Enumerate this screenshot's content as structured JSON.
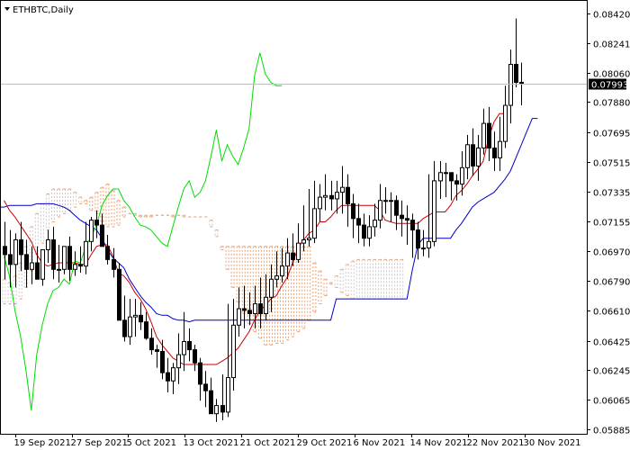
{
  "chart_data": {
    "type": "candlestick",
    "title": "ETHBTC,Daily",
    "current_price": "0.07993",
    "ylim": [
      0.05885,
      0.0842
    ],
    "y_ticks": [
      "0.08420",
      "0.08241",
      "0.08060",
      "0.07880",
      "0.07695",
      "0.07515",
      "0.07335",
      "0.07155",
      "0.06970",
      "0.06790",
      "0.06610",
      "0.06425",
      "0.06245",
      "0.06065",
      "0.05885"
    ],
    "x_ticks": [
      "19 Sep 2021",
      "27 Sep 2021",
      "5 Oct 2021",
      "13 Oct 2021",
      "21 Oct 2021",
      "29 Oct 2021",
      "6 Nov 2021",
      "14 Nov 2021",
      "22 Nov 2021",
      "30 Nov 2021"
    ],
    "grid": false,
    "colors": {
      "bull_candle": "#ffffff",
      "bear_candle": "#000000",
      "kijun": "#0000c8",
      "tenkan": "#cc0000",
      "chikou": "#00dd00",
      "cloud_hatch": "#e8a070",
      "cloud_hatch_alt": "#cfc8c8",
      "price_line": "#c0c0c0",
      "price_label_bg": "#000000"
    },
    "series": [
      {
        "name": "open",
        "values": [
          0.07,
          0.0695,
          0.0689,
          0.0704,
          0.0695,
          0.0686,
          0.069,
          0.068,
          0.0698,
          0.0704,
          0.0686,
          0.0686,
          0.07,
          0.0686,
          0.0689,
          0.0688,
          0.0703,
          0.0716,
          0.0713,
          0.07,
          0.0692,
          0.0686,
          0.0655,
          0.0645,
          0.0657,
          0.0658,
          0.0654,
          0.0644,
          0.0637,
          0.0636,
          0.0623,
          0.0618,
          0.0626,
          0.0634,
          0.0642,
          0.0637,
          0.0629,
          0.0616,
          0.0612,
          0.0598,
          0.0603,
          0.0599,
          0.062,
          0.0652,
          0.0662,
          0.0661,
          0.0659,
          0.0665,
          0.0659,
          0.0669,
          0.068,
          0.0682,
          0.0688,
          0.0696,
          0.0692,
          0.0702,
          0.0704,
          0.0705,
          0.0723,
          0.073,
          0.0731,
          0.0729,
          0.0733,
          0.0736,
          0.0726,
          0.0717,
          0.0713,
          0.0705,
          0.0712,
          0.0716,
          0.0728,
          0.0728,
          0.0728,
          0.0719,
          0.0717,
          0.0716,
          0.071,
          0.0699,
          0.0699,
          0.0703,
          0.074,
          0.0745,
          0.0745,
          0.074,
          0.0738,
          0.0748,
          0.0762,
          0.0749,
          0.076,
          0.0775,
          0.076,
          0.0754,
          0.0764,
          0.0786,
          0.0811,
          0.08
        ]
      },
      {
        "name": "high",
        "values": [
          0.0715,
          0.071,
          0.0708,
          0.0715,
          0.0704,
          0.07,
          0.07,
          0.0695,
          0.071,
          0.0712,
          0.0701,
          0.07,
          0.0706,
          0.0697,
          0.07,
          0.0715,
          0.0718,
          0.0722,
          0.072,
          0.0707,
          0.0699,
          0.069,
          0.067,
          0.0668,
          0.0668,
          0.0666,
          0.066,
          0.065,
          0.064,
          0.0643,
          0.0632,
          0.0629,
          0.0647,
          0.066,
          0.065,
          0.064,
          0.0632,
          0.0624,
          0.062,
          0.0607,
          0.0622,
          0.0665,
          0.0668,
          0.0675,
          0.0676,
          0.0672,
          0.0676,
          0.0681,
          0.0683,
          0.0689,
          0.0697,
          0.0699,
          0.0705,
          0.0708,
          0.0714,
          0.0725,
          0.0735,
          0.074,
          0.0738,
          0.0744,
          0.074,
          0.074,
          0.0749,
          0.0744,
          0.0732,
          0.0726,
          0.072,
          0.0719,
          0.0726,
          0.0738,
          0.0736,
          0.0733,
          0.0731,
          0.0728,
          0.0725,
          0.072,
          0.0715,
          0.071,
          0.0744,
          0.0752,
          0.0752,
          0.0751,
          0.0745,
          0.0744,
          0.0758,
          0.0768,
          0.0772,
          0.0768,
          0.0784,
          0.0785,
          0.077,
          0.0779,
          0.0798,
          0.082,
          0.0839,
          0.0812
        ]
      },
      {
        "name": "low",
        "values": [
          0.068,
          0.0675,
          0.0675,
          0.0685,
          0.0675,
          0.0677,
          0.068,
          0.0676,
          0.069,
          0.068,
          0.0678,
          0.0683,
          0.0679,
          0.0682,
          0.0684,
          0.0683,
          0.0697,
          0.0705,
          0.07,
          0.0689,
          0.0681,
          0.066,
          0.0642,
          0.064,
          0.0645,
          0.0649,
          0.0643,
          0.0634,
          0.0626,
          0.0619,
          0.0611,
          0.061,
          0.0616,
          0.0624,
          0.063,
          0.0624,
          0.0606,
          0.0602,
          0.0598,
          0.0593,
          0.0594,
          0.0596,
          0.0612,
          0.0645,
          0.065,
          0.0652,
          0.065,
          0.065,
          0.0655,
          0.066,
          0.0675,
          0.0678,
          0.068,
          0.0688,
          0.069,
          0.0697,
          0.07,
          0.0702,
          0.0715,
          0.0722,
          0.0722,
          0.072,
          0.072,
          0.0712,
          0.0705,
          0.0702,
          0.07,
          0.07,
          0.0706,
          0.0711,
          0.072,
          0.0715,
          0.071,
          0.0706,
          0.0701,
          0.0693,
          0.0692,
          0.0694,
          0.0693,
          0.07,
          0.0729,
          0.073,
          0.0728,
          0.0728,
          0.0731,
          0.0741,
          0.0743,
          0.074,
          0.0756,
          0.0752,
          0.0746,
          0.0746,
          0.076,
          0.0775,
          0.0797,
          0.0786
        ]
      },
      {
        "name": "close",
        "values": [
          0.0695,
          0.0689,
          0.0704,
          0.0695,
          0.0686,
          0.069,
          0.068,
          0.0698,
          0.0704,
          0.0686,
          0.0686,
          0.07,
          0.0686,
          0.0689,
          0.0688,
          0.0703,
          0.0716,
          0.0713,
          0.07,
          0.0692,
          0.0686,
          0.0655,
          0.0645,
          0.0657,
          0.0658,
          0.0654,
          0.0644,
          0.0637,
          0.0636,
          0.0623,
          0.0618,
          0.0626,
          0.0634,
          0.0642,
          0.0637,
          0.0629,
          0.0616,
          0.0612,
          0.0598,
          0.0603,
          0.0599,
          0.062,
          0.0652,
          0.0662,
          0.0661,
          0.0659,
          0.0665,
          0.0659,
          0.0669,
          0.068,
          0.0682,
          0.0688,
          0.0696,
          0.0692,
          0.0702,
          0.0704,
          0.0705,
          0.0723,
          0.073,
          0.0731,
          0.0729,
          0.0733,
          0.0736,
          0.0726,
          0.0717,
          0.0713,
          0.0705,
          0.0712,
          0.0716,
          0.0728,
          0.0728,
          0.0728,
          0.0719,
          0.0717,
          0.0716,
          0.071,
          0.0699,
          0.0699,
          0.0703,
          0.074,
          0.0745,
          0.0745,
          0.074,
          0.0738,
          0.0748,
          0.0762,
          0.0749,
          0.076,
          0.0775,
          0.076,
          0.0754,
          0.0764,
          0.0786,
          0.0811,
          0.08,
          0.0799
        ]
      }
    ],
    "indicators": {
      "kijun_sen": [
        0.0724,
        0.0724,
        0.0725,
        0.0725,
        0.0725,
        0.0725,
        0.0725,
        0.0726,
        0.0726,
        0.0726,
        0.0726,
        0.0725,
        0.0724,
        0.0722,
        0.0719,
        0.0716,
        0.0714,
        0.0712,
        0.071,
        0.0705,
        0.0698,
        0.0693,
        0.069,
        0.0687,
        0.068,
        0.0675,
        0.067,
        0.0666,
        0.0663,
        0.0659,
        0.0658,
        0.0658,
        0.0656,
        0.0655,
        0.0655,
        0.0654,
        0.0655,
        0.0655,
        0.0655,
        0.0655,
        0.0655,
        0.0655,
        0.0655,
        0.0655,
        0.0655,
        0.0655,
        0.0655,
        0.0655,
        0.0655,
        0.0655,
        0.0655,
        0.0655,
        0.0655,
        0.0655,
        0.0655,
        0.0655,
        0.0655,
        0.0655,
        0.0655,
        0.0655,
        0.0655,
        0.0655,
        0.0668,
        0.0668,
        0.0668,
        0.0668,
        0.0668,
        0.0668,
        0.0668,
        0.0668,
        0.0668,
        0.0668,
        0.0668,
        0.0668,
        0.0668,
        0.0668,
        0.0686,
        0.0701,
        0.0705,
        0.0705,
        0.0705,
        0.0705,
        0.0705,
        0.0705,
        0.071,
        0.0714,
        0.0719,
        0.0724,
        0.0727,
        0.0729,
        0.0731,
        0.0733,
        0.0737,
        0.0741,
        0.0746,
        0.0754,
        0.0762,
        0.077,
        0.0778,
        0.0778
      ],
      "tenkan_sen": [
        0.0728,
        0.0722,
        0.0718,
        0.0713,
        0.0708,
        0.0703,
        0.0695,
        0.069,
        0.0688,
        0.0689,
        0.069,
        0.069,
        0.069,
        0.069,
        0.0689,
        0.0689,
        0.0695,
        0.07,
        0.0701,
        0.0701,
        0.0694,
        0.0684,
        0.0682,
        0.0678,
        0.0672,
        0.0668,
        0.0662,
        0.0654,
        0.0645,
        0.064,
        0.0636,
        0.0632,
        0.063,
        0.0628,
        0.0628,
        0.0628,
        0.0628,
        0.0628,
        0.0628,
        0.0628,
        0.063,
        0.0632,
        0.0635,
        0.0638,
        0.0643,
        0.0648,
        0.0655,
        0.0661,
        0.0664,
        0.0668,
        0.067,
        0.0676,
        0.0681,
        0.069,
        0.0699,
        0.0704,
        0.0708,
        0.071,
        0.0715,
        0.0715,
        0.0718,
        0.0722,
        0.0725,
        0.0725,
        0.0725,
        0.0725,
        0.0725,
        0.0725,
        0.0725,
        0.0722,
        0.0716,
        0.0715,
        0.0714,
        0.0714,
        0.0714,
        0.0714,
        0.0714,
        0.0717,
        0.0719,
        0.0721,
        0.0721,
        0.0721,
        0.0725,
        0.0731,
        0.0734,
        0.0738,
        0.0743,
        0.0747,
        0.0752,
        0.0766,
        0.0776,
        0.0781,
        0.0781
      ],
      "chikou_span": [
        0.0694,
        0.0682,
        0.0661,
        0.0646,
        0.0625,
        0.06,
        0.0634,
        0.0652,
        0.0665,
        0.0673,
        0.0675,
        0.068,
        0.0677,
        0.0691,
        0.069,
        0.07,
        0.0706,
        0.0713,
        0.0725,
        0.0731,
        0.0735,
        0.0735,
        0.0728,
        0.0724,
        0.0718,
        0.0713,
        0.0712,
        0.071,
        0.0706,
        0.0702,
        0.07,
        0.0712,
        0.0724,
        0.0735,
        0.074,
        0.073,
        0.0733,
        0.074,
        0.0755,
        0.0771,
        0.0752,
        0.0762,
        0.0755,
        0.075,
        0.076,
        0.0772,
        0.0804,
        0.0818,
        0.0805,
        0.08,
        0.0798,
        0.0798
      ],
      "senkou_a": [
        0.068,
        0.0678,
        0.0682,
        0.069,
        0.07,
        0.0712,
        0.072,
        0.0726,
        0.0732,
        0.0735,
        0.0735,
        0.0735,
        0.0735,
        0.0733,
        0.073,
        0.0726,
        0.0722,
        0.072,
        0.0715,
        0.0712,
        0.0712,
        0.0713,
        0.0718,
        0.072,
        0.072,
        0.0718,
        0.0718,
        0.0718,
        0.0719,
        0.0719,
        0.0719,
        0.0718,
        0.0719,
        0.0719,
        0.0718,
        0.0718,
        0.0718,
        0.0718,
        0.0716,
        0.071,
        0.0698,
        0.0686,
        0.0675,
        0.0666,
        0.0659,
        0.0653,
        0.0648,
        0.0644,
        0.064,
        0.064,
        0.0641,
        0.0641,
        0.0643,
        0.0645,
        0.0648,
        0.065,
        0.0655,
        0.066,
        0.0665,
        0.067,
        0.0678,
        0.0682,
        0.0686,
        0.0689,
        0.0691,
        0.0692,
        0.0692,
        0.0692,
        0.0692,
        0.0692,
        0.0692,
        0.0692,
        0.0692,
        0.0692
      ],
      "senkou_b": [
        0.0665,
        0.0665,
        0.0665,
        0.0668,
        0.0675,
        0.0685,
        0.0695,
        0.0702,
        0.071,
        0.0715,
        0.0718,
        0.072,
        0.0722,
        0.0724,
        0.0726,
        0.0728,
        0.073,
        0.0733,
        0.0736,
        0.0738,
        0.0734,
        0.0728,
        0.0724,
        0.072,
        0.0719,
        0.0719,
        0.0719,
        0.0719,
        0.0719,
        0.0719,
        0.0719,
        0.0719,
        0.0719,
        0.0718,
        0.0718,
        0.0718,
        0.0718,
        0.0718,
        0.0712,
        0.0706,
        0.07,
        0.07,
        0.07,
        0.07,
        0.07,
        0.07,
        0.07,
        0.07,
        0.07,
        0.07,
        0.07,
        0.07,
        0.07,
        0.07,
        0.07,
        0.07,
        0.07,
        0.069,
        0.0685,
        0.068,
        0.0677,
        0.0675,
        0.0672,
        0.067,
        0.0668,
        0.0668,
        0.0668,
        0.0668,
        0.0668,
        0.0668,
        0.0668,
        0.0668,
        0.0668,
        0.0668
      ]
    }
  }
}
